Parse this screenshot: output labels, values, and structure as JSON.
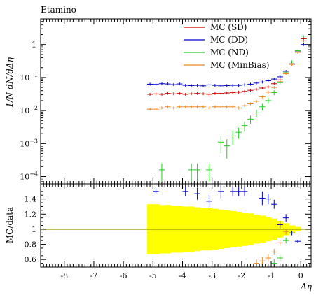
{
  "title": "Etamino",
  "chart_data": [
    {
      "type": "scatter",
      "panel": "main",
      "ylabel": "1/N dN/dΔη",
      "yscale": "log",
      "ylim": [
        6e-05,
        6
      ],
      "xlim": [
        -8.8,
        0.35
      ],
      "yticks": [
        {
          "v": 0.0001,
          "base": "10",
          "exp": "−4"
        },
        {
          "v": 0.001,
          "base": "10",
          "exp": "−3"
        },
        {
          "v": 0.01,
          "base": "10",
          "exp": "−2"
        },
        {
          "v": 0.1,
          "base": "10",
          "exp": "−1"
        },
        {
          "v": 1,
          "base": "1",
          "exp": ""
        }
      ],
      "legend": [
        {
          "name": "MC (SD)",
          "color": "#cc0000"
        },
        {
          "name": "MC (DD)",
          "color": "#0000cc"
        },
        {
          "name": "MC (ND)",
          "color": "#22cc22"
        },
        {
          "name": "MC (MinBias)",
          "color": "#ee8822"
        }
      ],
      "series": [
        {
          "name": "MC (SD)",
          "color": "#cc0000",
          "xerr": 0.1,
          "points": [
            [
              -5.1,
              0.031
            ],
            [
              -4.9,
              0.032
            ],
            [
              -4.7,
              0.031
            ],
            [
              -4.5,
              0.033
            ],
            [
              -4.3,
              0.032
            ],
            [
              -4.1,
              0.033
            ],
            [
              -3.9,
              0.031
            ],
            [
              -3.7,
              0.032
            ],
            [
              -3.5,
              0.033
            ],
            [
              -3.3,
              0.032
            ],
            [
              -3.1,
              0.031
            ],
            [
              -2.9,
              0.033
            ],
            [
              -2.7,
              0.033
            ],
            [
              -2.5,
              0.034
            ],
            [
              -2.3,
              0.035
            ],
            [
              -2.1,
              0.036
            ],
            [
              -1.9,
              0.038
            ],
            [
              -1.7,
              0.041
            ],
            [
              -1.5,
              0.044
            ],
            [
              -1.3,
              0.048
            ],
            [
              -1.1,
              0.052
            ],
            [
              -0.9,
              0.065
            ],
            [
              -0.7,
              0.085
            ],
            [
              -0.5,
              0.14
            ],
            [
              -0.3,
              0.26
            ],
            [
              -0.1,
              0.6
            ],
            [
              0.1,
              1.5
            ]
          ]
        },
        {
          "name": "MC (DD)",
          "color": "#0000cc",
          "xerr": 0.1,
          "points": [
            [
              -5.1,
              0.063
            ],
            [
              -4.9,
              0.062
            ],
            [
              -4.7,
              0.065
            ],
            [
              -4.5,
              0.064
            ],
            [
              -4.3,
              0.061
            ],
            [
              -4.1,
              0.064
            ],
            [
              -3.9,
              0.058
            ],
            [
              -3.7,
              0.057
            ],
            [
              -3.5,
              0.058
            ],
            [
              -3.3,
              0.056
            ],
            [
              -3.1,
              0.06
            ],
            [
              -2.9,
              0.058
            ],
            [
              -2.7,
              0.056
            ],
            [
              -2.5,
              0.057
            ],
            [
              -2.3,
              0.058
            ],
            [
              -2.1,
              0.058
            ],
            [
              -1.9,
              0.06
            ],
            [
              -1.7,
              0.063
            ],
            [
              -1.5,
              0.068
            ],
            [
              -1.3,
              0.073
            ],
            [
              -1.1,
              0.08
            ],
            [
              -0.9,
              0.09
            ],
            [
              -0.7,
              0.105
            ],
            [
              -0.5,
              0.155
            ],
            [
              -0.3,
              0.26
            ],
            [
              -0.1,
              0.6
            ],
            [
              0.1,
              1.0
            ]
          ]
        },
        {
          "name": "MC (ND)",
          "color": "#22cc22",
          "xerr": 0.1,
          "points": [
            [
              -4.7,
              0.00016,
              9e-05
            ],
            [
              -3.7,
              0.00016,
              9e-05
            ],
            [
              -3.5,
              0.00016,
              9e-05
            ],
            [
              -3.1,
              0.00016,
              9e-05
            ],
            [
              -2.7,
              0.0011,
              0.0006
            ],
            [
              -2.5,
              0.00085,
              0.0005
            ],
            [
              -2.3,
              0.0017,
              0.0008
            ],
            [
              -2.1,
              0.0022,
              0.0008
            ],
            [
              -1.9,
              0.0035,
              0.0012
            ],
            [
              -1.7,
              0.0055,
              0.0015
            ],
            [
              -1.5,
              0.0085,
              0.002
            ],
            [
              -1.3,
              0.013,
              0.003
            ],
            [
              -1.1,
              0.02,
              0.004
            ],
            [
              -0.9,
              0.035,
              0.006
            ],
            [
              -0.7,
              0.07,
              0.01
            ],
            [
              -0.5,
              0.14,
              0.015
            ],
            [
              -0.3,
              0.3,
              0.03
            ],
            [
              -0.1,
              0.65,
              0.05
            ],
            [
              0.1,
              1.8,
              0.1
            ]
          ]
        },
        {
          "name": "MC (MinBias)",
          "color": "#ee8822",
          "xerr": 0.1,
          "points": [
            [
              -5.1,
              0.011
            ],
            [
              -4.9,
              0.011
            ],
            [
              -4.7,
              0.012
            ],
            [
              -4.5,
              0.013
            ],
            [
              -4.3,
              0.012
            ],
            [
              -4.1,
              0.013
            ],
            [
              -3.9,
              0.013
            ],
            [
              -3.7,
              0.013
            ],
            [
              -3.5,
              0.013
            ],
            [
              -3.3,
              0.013
            ],
            [
              -3.1,
              0.012
            ],
            [
              -2.9,
              0.013
            ],
            [
              -2.7,
              0.013
            ],
            [
              -2.5,
              0.013
            ],
            [
              -2.3,
              0.013
            ],
            [
              -2.1,
              0.012
            ],
            [
              -1.9,
              0.014
            ],
            [
              -1.7,
              0.016
            ],
            [
              -1.5,
              0.019
            ],
            [
              -1.3,
              0.026
            ],
            [
              -1.1,
              0.036
            ],
            [
              -0.9,
              0.05
            ],
            [
              -0.7,
              0.075
            ],
            [
              -0.5,
              0.13
            ],
            [
              -0.3,
              0.25
            ],
            [
              -0.1,
              0.58
            ],
            [
              0.1,
              1.3
            ]
          ]
        }
      ]
    },
    {
      "type": "scatter",
      "panel": "ratio",
      "ylabel": "MC/data",
      "xlabel": "Δη",
      "ylim": [
        0.5,
        1.6
      ],
      "xlim": [
        -8.8,
        0.35
      ],
      "yticks": [
        "0.6",
        "0.8",
        "1",
        "1.2",
        "1.4"
      ],
      "xticks": [
        "-8",
        "-7",
        "-6",
        "-5",
        "-4",
        "-3",
        "-2",
        "-1",
        "0"
      ],
      "reference_line": {
        "y": 1.0,
        "color": "#999900"
      },
      "band": {
        "color": "#ffff00",
        "edges": [
          [
            -5.2,
            0.33
          ],
          [
            -5.0,
            0.33
          ],
          [
            -4.8,
            0.32
          ],
          [
            -4.6,
            0.32
          ],
          [
            -4.4,
            0.31
          ],
          [
            -4.2,
            0.31
          ],
          [
            -4.0,
            0.3
          ],
          [
            -3.8,
            0.3
          ],
          [
            -3.6,
            0.29
          ],
          [
            -3.4,
            0.28
          ],
          [
            -3.2,
            0.28
          ],
          [
            -3.0,
            0.27
          ],
          [
            -2.8,
            0.26
          ],
          [
            -2.6,
            0.25
          ],
          [
            -2.4,
            0.24
          ],
          [
            -2.2,
            0.23
          ],
          [
            -2.0,
            0.22
          ],
          [
            -1.8,
            0.21
          ],
          [
            -1.6,
            0.19
          ],
          [
            -1.4,
            0.18
          ],
          [
            -1.2,
            0.16
          ],
          [
            -1.0,
            0.14
          ],
          [
            -0.8,
            0.11
          ],
          [
            -0.6,
            0.08
          ],
          [
            -0.4,
            0.05
          ],
          [
            -0.2,
            0.03
          ],
          [
            0.0,
            0.0
          ]
        ]
      },
      "series": [
        {
          "name": "MC (DD)",
          "color": "#0000cc",
          "xerr": 0.1,
          "points": [
            [
              -4.9,
              1.5,
              0.04
            ],
            [
              -3.9,
              1.5,
              0.06
            ],
            [
              -3.5,
              1.47,
              0.08
            ],
            [
              -3.1,
              1.37,
              0.08
            ],
            [
              -2.7,
              1.5,
              0.09
            ],
            [
              -2.3,
              1.5,
              0.06
            ],
            [
              -2.1,
              1.5,
              0.06
            ],
            [
              -1.9,
              1.5,
              0.06
            ],
            [
              -1.3,
              1.41,
              0.09
            ],
            [
              -1.1,
              1.4,
              0.07
            ],
            [
              -0.9,
              1.33,
              0.06
            ],
            [
              -0.7,
              1.06,
              0.05
            ],
            [
              -0.5,
              1.15,
              0.05
            ],
            [
              -0.3,
              0.95,
              0.03
            ],
            [
              -0.1,
              0.84,
              0.02
            ]
          ]
        },
        {
          "name": "MC (ND)",
          "color": "#22cc22",
          "xerr": 0.1,
          "points": [
            [
              -0.9,
              0.55,
              0.05
            ],
            [
              -0.7,
              0.62,
              0.04
            ],
            [
              -0.5,
              0.85,
              0.04
            ]
          ]
        },
        {
          "name": "MC (MinBias)",
          "color": "#ee8822",
          "xerr": 0.1,
          "points": [
            [
              -1.5,
              0.55,
              0.05
            ],
            [
              -1.3,
              0.58,
              0.05
            ],
            [
              -1.1,
              0.62,
              0.05
            ],
            [
              -0.9,
              0.7,
              0.04
            ],
            [
              -0.7,
              0.82,
              0.04
            ],
            [
              -0.5,
              0.97,
              0.04
            ]
          ]
        }
      ]
    }
  ]
}
